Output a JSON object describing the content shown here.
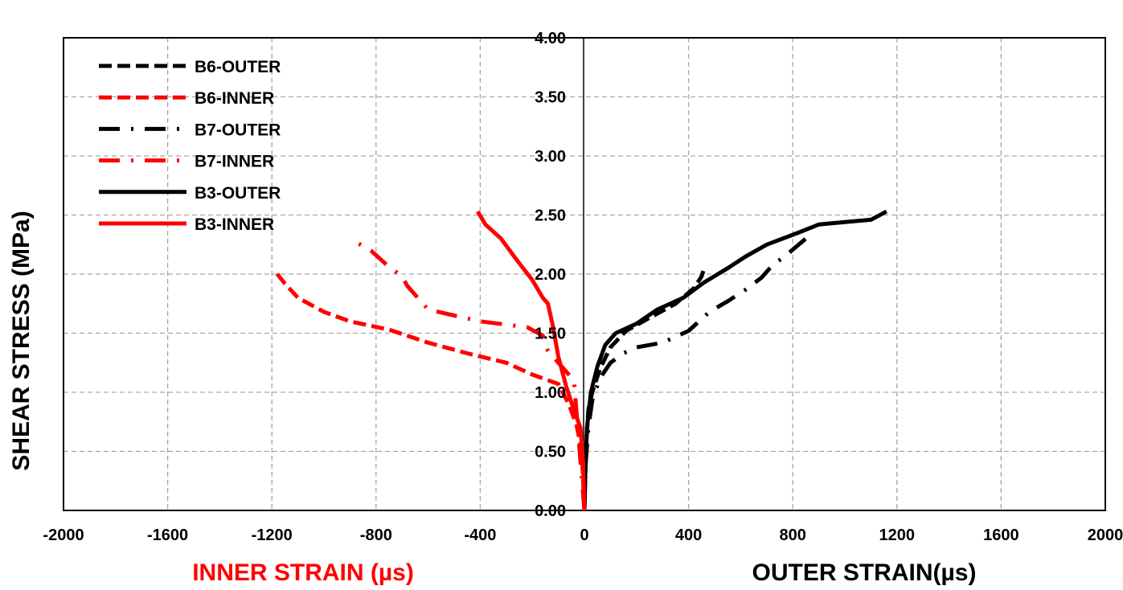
{
  "chart_data": {
    "type": "line",
    "ylabel": "SHEAR STRESS (MPa)",
    "xlabel_inner": "INNER STRAIN (µs)",
    "xlabel_outer": "OUTER STRAIN(µs)",
    "xlim": [
      -2000,
      2000
    ],
    "ylim": [
      0,
      4
    ],
    "x_ticks": [
      "-2000",
      "-1600",
      "-1200",
      "-800",
      "-400",
      "0",
      "400",
      "800",
      "1200",
      "1600",
      "2000"
    ],
    "y_ticks": [
      "0.00",
      "0.50",
      "1.00",
      "1.50",
      "2.00",
      "2.50",
      "3.00",
      "3.50",
      "4.00"
    ],
    "grid": true,
    "legend_position": "top-left",
    "colors": {
      "outer": "#000000",
      "inner": "#ff0000"
    },
    "series": [
      {
        "name": "B6-OUTER",
        "color": "#000000",
        "dash": "dashed",
        "points": [
          [
            0,
            0
          ],
          [
            3,
            0.3
          ],
          [
            8,
            0.6
          ],
          [
            15,
            0.85
          ],
          [
            30,
            1.0
          ],
          [
            60,
            1.2
          ],
          [
            100,
            1.38
          ],
          [
            160,
            1.52
          ],
          [
            250,
            1.63
          ],
          [
            350,
            1.75
          ],
          [
            420,
            1.88
          ],
          [
            450,
            1.98
          ],
          [
            460,
            2.05
          ]
        ]
      },
      {
        "name": "B6-INNER",
        "color": "#ff0000",
        "dash": "dashed",
        "points": [
          [
            0,
            0
          ],
          [
            -10,
            0.5
          ],
          [
            -30,
            0.72
          ],
          [
            -60,
            0.9
          ],
          [
            -100,
            1.07
          ],
          [
            -200,
            1.15
          ],
          [
            -300,
            1.25
          ],
          [
            -450,
            1.33
          ],
          [
            -600,
            1.42
          ],
          [
            -750,
            1.53
          ],
          [
            -900,
            1.6
          ],
          [
            -1000,
            1.68
          ],
          [
            -1100,
            1.8
          ],
          [
            -1150,
            1.92
          ],
          [
            -1190,
            2.03
          ]
        ]
      },
      {
        "name": "B7-OUTER",
        "color": "#000000",
        "dash": "dashdot",
        "points": [
          [
            0,
            0
          ],
          [
            5,
            0.4
          ],
          [
            15,
            0.7
          ],
          [
            30,
            0.93
          ],
          [
            60,
            1.12
          ],
          [
            100,
            1.25
          ],
          [
            150,
            1.33
          ],
          [
            200,
            1.38
          ],
          [
            300,
            1.42
          ],
          [
            400,
            1.52
          ],
          [
            480,
            1.68
          ],
          [
            550,
            1.77
          ],
          [
            620,
            1.87
          ],
          [
            680,
            1.97
          ],
          [
            720,
            2.07
          ],
          [
            780,
            2.17
          ],
          [
            850,
            2.3
          ]
        ]
      },
      {
        "name": "B7-INNER",
        "color": "#ff0000",
        "dash": "dashdot",
        "points": [
          [
            0,
            0
          ],
          [
            -40,
            1.1
          ],
          [
            -100,
            1.25
          ],
          [
            -140,
            1.35
          ],
          [
            -160,
            1.48
          ],
          [
            -220,
            1.55
          ],
          [
            -400,
            1.6
          ],
          [
            -500,
            1.65
          ],
          [
            -600,
            1.7
          ],
          [
            -640,
            1.8
          ],
          [
            -680,
            1.9
          ],
          [
            -700,
            1.98
          ],
          [
            -760,
            2.08
          ],
          [
            -820,
            2.2
          ],
          [
            -900,
            2.3
          ]
        ]
      },
      {
        "name": "B3-OUTER",
        "color": "#000000",
        "dash": "solid",
        "points": [
          [
            0,
            0
          ],
          [
            3,
            0.3
          ],
          [
            10,
            0.7
          ],
          [
            25,
            1.0
          ],
          [
            50,
            1.22
          ],
          [
            80,
            1.4
          ],
          [
            120,
            1.5
          ],
          [
            200,
            1.58
          ],
          [
            280,
            1.7
          ],
          [
            380,
            1.8
          ],
          [
            460,
            1.93
          ],
          [
            550,
            2.05
          ],
          [
            620,
            2.15
          ],
          [
            700,
            2.25
          ],
          [
            820,
            2.35
          ],
          [
            900,
            2.42
          ],
          [
            1000,
            2.44
          ],
          [
            1100,
            2.46
          ],
          [
            1160,
            2.53
          ]
        ]
      },
      {
        "name": "B3-INNER",
        "color": "#ff0000",
        "dash": "solid",
        "points": [
          [
            0,
            0
          ],
          [
            -5,
            0.4
          ],
          [
            -15,
            0.7
          ],
          [
            -40,
            0.85
          ],
          [
            -70,
            1.05
          ],
          [
            -100,
            1.3
          ],
          [
            -120,
            1.55
          ],
          [
            -140,
            1.75
          ],
          [
            -160,
            1.8
          ],
          [
            -200,
            1.95
          ],
          [
            -260,
            2.12
          ],
          [
            -320,
            2.3
          ],
          [
            -380,
            2.42
          ],
          [
            -410,
            2.53
          ]
        ]
      }
    ]
  }
}
